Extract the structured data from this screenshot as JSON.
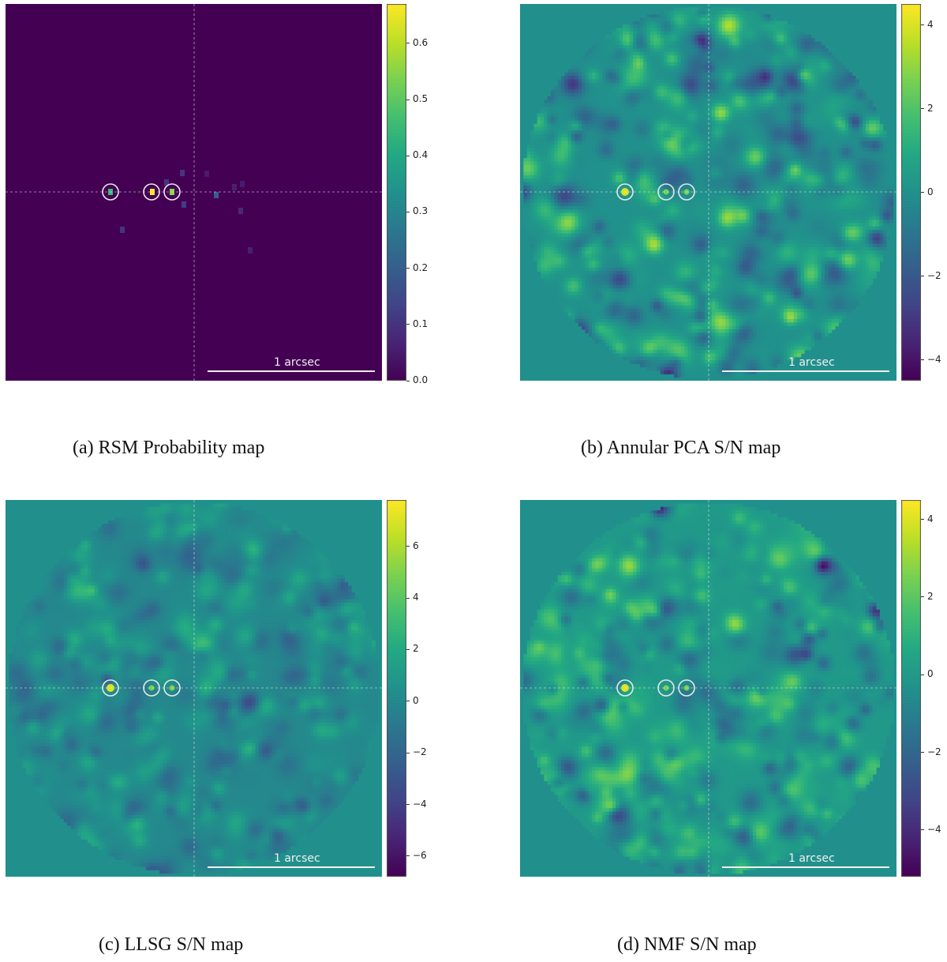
{
  "chart_data": [
    {
      "type": "heatmap",
      "caption": "(a) RSM Probability map",
      "colormap": "viridis",
      "colorbar_ticks": [
        "0.0",
        "0.1",
        "0.2",
        "0.3",
        "0.4",
        "0.5",
        "0.6"
      ],
      "colorbar_values": [
        0.0,
        0.1,
        0.2,
        0.3,
        0.4,
        0.5,
        0.6
      ],
      "vmin": 0.0,
      "vmax": 0.67,
      "scale_bar": "1 arcsec",
      "circle_count": 3
    },
    {
      "type": "heatmap",
      "caption": "(b) Annular PCA S/N map",
      "colormap": "viridis",
      "colorbar_ticks": [
        "−4",
        "−2",
        "0",
        "2",
        "4"
      ],
      "colorbar_values": [
        -4,
        -2,
        0,
        2,
        4
      ],
      "vmin": -4.5,
      "vmax": 4.5,
      "scale_bar": "1 arcsec",
      "circle_count": 3
    },
    {
      "type": "heatmap",
      "caption": "(c) LLSG S/N map",
      "colormap": "viridis",
      "colorbar_ticks": [
        "−6",
        "−4",
        "−2",
        "0",
        "2",
        "4",
        "6"
      ],
      "colorbar_values": [
        -6,
        -4,
        -2,
        0,
        2,
        4,
        6
      ],
      "vmin": -6.8,
      "vmax": 7.8,
      "scale_bar": "1 arcsec",
      "circle_count": 3
    },
    {
      "type": "heatmap",
      "caption": "(d) NMF S/N map",
      "colormap": "viridis",
      "colorbar_ticks": [
        "−4",
        "−2",
        "0",
        "2",
        "4"
      ],
      "colorbar_values": [
        -4,
        -2,
        0,
        2,
        4
      ],
      "vmin": -5.2,
      "vmax": 4.5,
      "scale_bar": "1 arcsec",
      "circle_count": 3
    }
  ],
  "colors": {
    "rsm_background": "#440154",
    "snr_background": "#21908c",
    "annotation": "#e8e8e8"
  }
}
